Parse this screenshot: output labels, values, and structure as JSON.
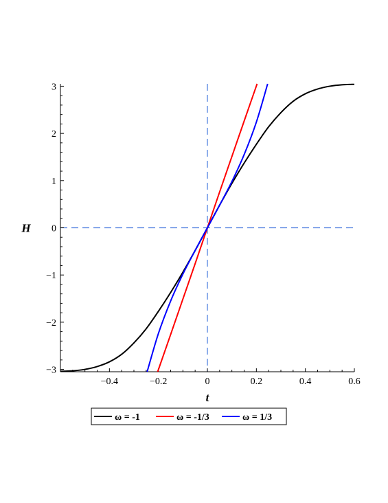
{
  "chart_data": {
    "type": "line",
    "title": "",
    "xlabel": "t",
    "ylabel": "H",
    "xlim": [
      -0.6,
      0.6
    ],
    "ylim": [
      -3.05,
      3.05
    ],
    "xticks": [
      {
        "value": -0.4,
        "label": "−0.4"
      },
      {
        "value": -0.2,
        "label": "−0.2"
      },
      {
        "value": 0,
        "label": "0"
      },
      {
        "value": 0.2,
        "label": "0.2"
      },
      {
        "value": 0.4,
        "label": "0.4"
      },
      {
        "value": 0.6,
        "label": "0.6"
      }
    ],
    "yticks": [
      {
        "value": -3,
        "label": "−3"
      },
      {
        "value": -2,
        "label": "−2"
      },
      {
        "value": -1,
        "label": "−1"
      },
      {
        "value": 0,
        "label": "0"
      },
      {
        "value": 1,
        "label": "1"
      },
      {
        "value": 2,
        "label": "2"
      },
      {
        "value": 3,
        "label": "3"
      }
    ],
    "reference_lines": {
      "x": 0,
      "y": 0,
      "color": "#4477dd",
      "style": "dashed"
    },
    "grid": false,
    "legend": {
      "position": "bottom"
    },
    "series": [
      {
        "name": "ω = -1",
        "color": "#000000",
        "x": [
          -0.6,
          -0.55,
          -0.5,
          -0.45,
          -0.4,
          -0.35,
          -0.3,
          -0.25,
          -0.2,
          -0.15,
          -0.1,
          -0.05,
          0,
          0.05,
          0.1,
          0.15,
          0.2,
          0.25,
          0.3,
          0.35,
          0.4,
          0.45,
          0.5,
          0.55,
          0.6
        ],
        "y": [
          -3.04,
          -3.03,
          -3.0,
          -2.94,
          -2.84,
          -2.68,
          -2.44,
          -2.14,
          -1.77,
          -1.37,
          -0.94,
          -0.48,
          0,
          0.48,
          0.94,
          1.37,
          1.77,
          2.14,
          2.44,
          2.68,
          2.84,
          2.94,
          3.0,
          3.03,
          3.04
        ]
      },
      {
        "name": "ω = -1/3",
        "color": "#ff0000",
        "x": [
          -0.203,
          -0.15,
          -0.1,
          -0.05,
          0,
          0.05,
          0.1,
          0.15,
          0.203
        ],
        "y": [
          -3.05,
          -2.26,
          -1.51,
          -0.76,
          0,
          0.76,
          1.51,
          2.26,
          3.05
        ]
      },
      {
        "name": "ω = 1/3",
        "color": "#0000ff",
        "x": [
          -0.246,
          -0.2,
          -0.15,
          -0.1,
          -0.05,
          0,
          0.05,
          0.1,
          0.15,
          0.2,
          0.246
        ],
        "y": [
          -3.05,
          -2.24,
          -1.55,
          -0.98,
          -0.48,
          0,
          0.48,
          0.98,
          1.55,
          2.24,
          3.05
        ]
      }
    ]
  }
}
